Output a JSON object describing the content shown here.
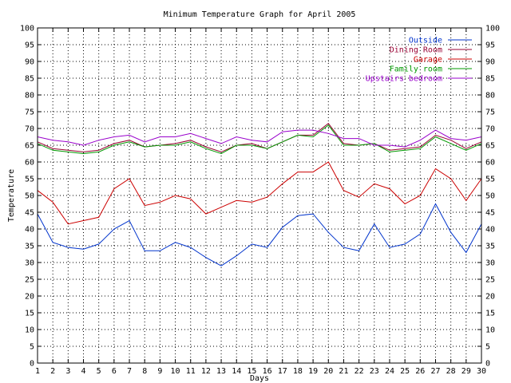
{
  "chart_data": {
    "type": "line",
    "title": "Minimum Temperature Graph for April 2005",
    "xlabel": "Days",
    "ylabel": "Temperature",
    "xlim": [
      1,
      30
    ],
    "ylim": [
      0,
      100
    ],
    "ytick_step": 5,
    "grid": true,
    "legend_position": "top-right",
    "x": [
      1,
      2,
      3,
      4,
      5,
      6,
      7,
      8,
      9,
      10,
      11,
      12,
      13,
      14,
      15,
      16,
      17,
      18,
      19,
      20,
      21,
      22,
      23,
      24,
      25,
      26,
      27,
      28,
      29,
      30
    ],
    "series": [
      {
        "name": "Outside",
        "color": "#0033cc",
        "values": [
          44.5,
          36,
          34.5,
          34,
          35.5,
          40,
          42.5,
          33.5,
          33.5,
          36,
          34.5,
          31.5,
          29,
          32,
          35.5,
          34.5,
          40.5,
          44,
          44.5,
          39,
          34.5,
          33.5,
          41.5,
          34.5,
          35.5,
          38.5,
          47.5,
          39,
          33,
          41.5
        ]
      },
      {
        "name": "Dining Room",
        "color": "#990033",
        "values": [
          66,
          64,
          63.5,
          63,
          63.5,
          65.5,
          66.5,
          64.5,
          65,
          65.5,
          66.5,
          64.5,
          63,
          65,
          65.5,
          64,
          66,
          68,
          68,
          71.5,
          65.5,
          65,
          65.5,
          63.5,
          64,
          64.5,
          68,
          66.5,
          64,
          66
        ]
      },
      {
        "name": "Garage",
        "color": "#cc0000",
        "values": [
          51.5,
          48,
          41.5,
          42.5,
          43.5,
          52,
          55,
          47,
          48,
          50,
          49,
          44.5,
          46.5,
          48.5,
          48,
          49.5,
          53.5,
          57,
          57,
          60,
          51.5,
          49.5,
          53.5,
          52,
          47.5,
          50,
          58,
          55,
          48.5,
          55
        ]
      },
      {
        "name": "Family room",
        "color": "#009900",
        "values": [
          65.5,
          63.5,
          63,
          62.5,
          63,
          65,
          66,
          64.5,
          65,
          65,
          66,
          64,
          62.5,
          65,
          65,
          64,
          66,
          68,
          67.5,
          71,
          65,
          65,
          65.5,
          63,
          63.5,
          64,
          67.5,
          65.5,
          63.5,
          65.5
        ]
      },
      {
        "name": "Upstairs bedroom",
        "color": "#9900cc",
        "values": [
          67.5,
          66.5,
          66,
          65,
          66.5,
          67.5,
          68,
          66,
          67.5,
          67.5,
          68.5,
          67,
          65.5,
          67.5,
          66.5,
          66,
          69,
          69.5,
          69.5,
          68.5,
          67,
          67,
          65,
          65,
          64.5,
          66.5,
          69.5,
          67,
          66.5,
          67.5
        ]
      }
    ]
  }
}
